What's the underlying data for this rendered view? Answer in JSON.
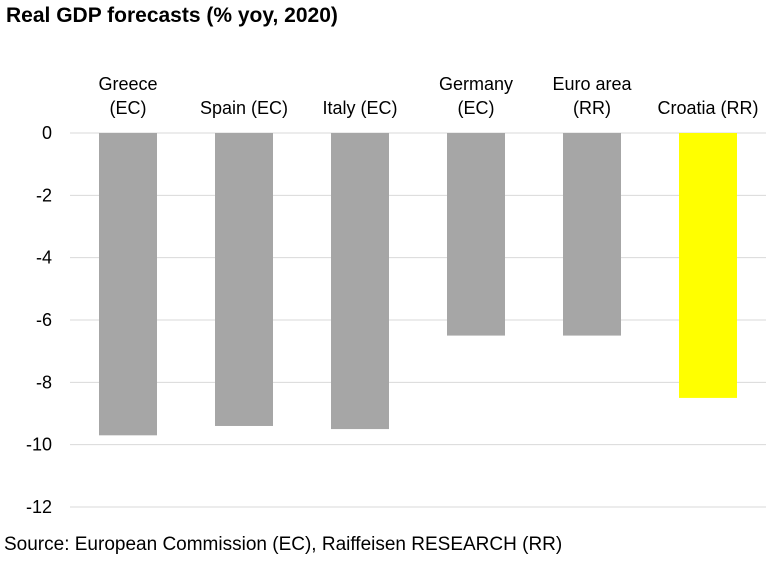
{
  "chart_data": {
    "type": "bar",
    "title": "Real GDP forecasts (% yoy, 2020)",
    "categories": [
      [
        "Greece",
        "(EC)"
      ],
      [
        "Spain (EC)"
      ],
      [
        "Italy (EC)"
      ],
      [
        "Germany",
        "(EC)"
      ],
      [
        "Euro area",
        "(RR)"
      ],
      [
        "Croatia (RR)"
      ]
    ],
    "values": [
      -9.7,
      -9.4,
      -9.5,
      -6.5,
      -6.5,
      -8.5
    ],
    "colors": [
      "#a6a6a6",
      "#a6a6a6",
      "#a6a6a6",
      "#a6a6a6",
      "#a6a6a6",
      "#ffff00"
    ],
    "ylim": [
      -12,
      0
    ],
    "yticks": [
      0,
      -2,
      -4,
      -6,
      -8,
      -10,
      -12
    ],
    "grid": true,
    "legend": "none"
  },
  "source": "Source: European Commission (EC), Raiffeisen RESEARCH (RR)"
}
